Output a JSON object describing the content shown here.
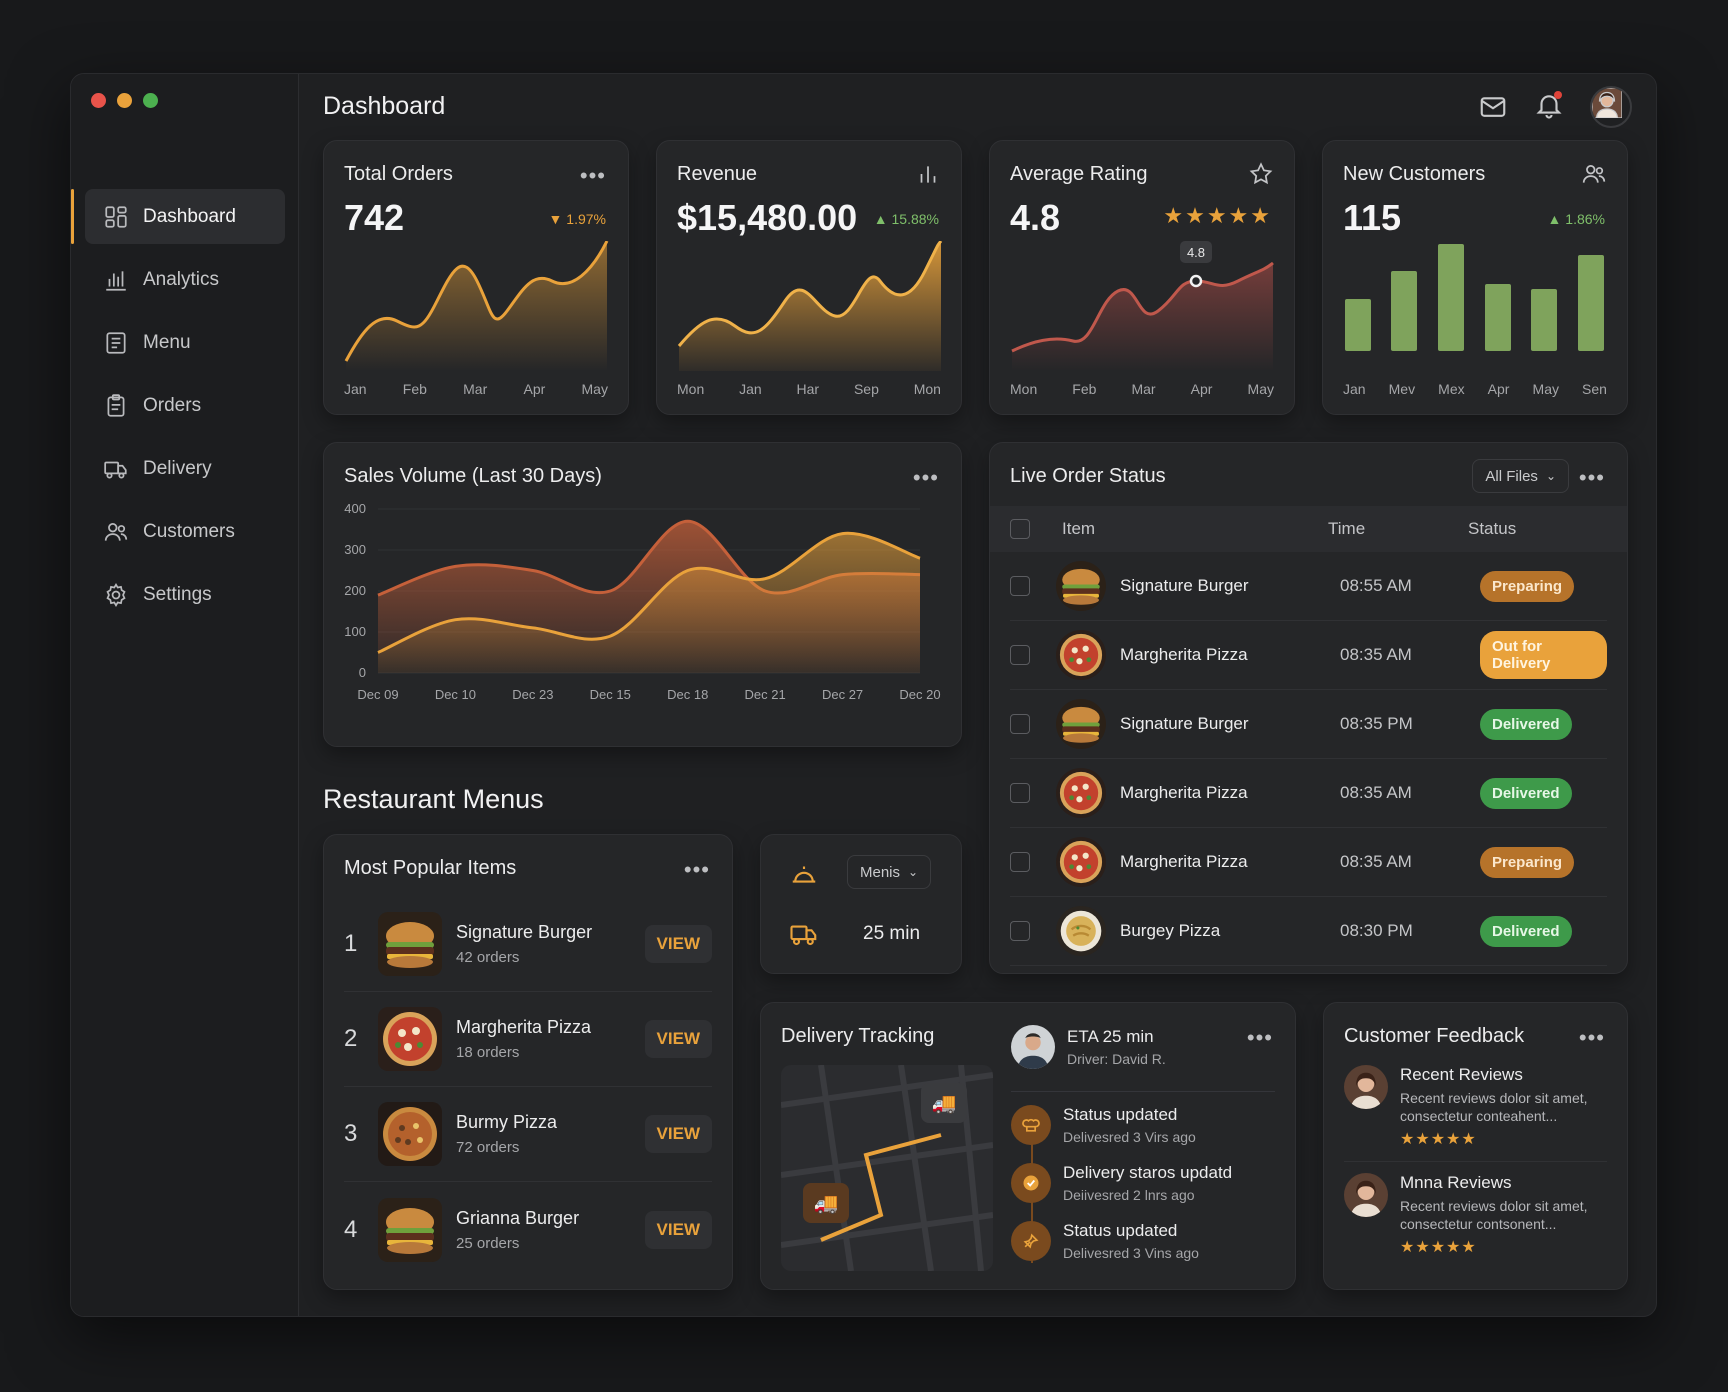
{
  "window": {
    "traffic_colors": [
      "#e8534a",
      "#e9a23b",
      "#4cb04f"
    ]
  },
  "sidebar": {
    "items": [
      {
        "label": "Dashboard",
        "icon": "grid-icon",
        "active": true
      },
      {
        "label": "Analytics",
        "icon": "bar-chart-icon"
      },
      {
        "label": "Menu",
        "icon": "menu-book-icon"
      },
      {
        "label": "Orders",
        "icon": "clipboard-icon"
      },
      {
        "label": "Delivery",
        "icon": "truck-icon"
      },
      {
        "label": "Customers",
        "icon": "users-icon"
      },
      {
        "label": "Settings",
        "icon": "gear-icon"
      }
    ]
  },
  "header": {
    "title": "Dashboard",
    "icons": [
      "mail-icon",
      "bell-icon",
      "avatar"
    ]
  },
  "kpis": {
    "total_orders": {
      "title": "Total Orders",
      "value": "742",
      "delta": "▼ 1.97%",
      "ticks": [
        "Jan",
        "Feb",
        "Mar",
        "Apr",
        "May"
      ]
    },
    "revenue": {
      "title": "Revenue",
      "value": "$15,480.00",
      "delta": "▲ 15.88%",
      "ticks": [
        "Mon",
        "Jan",
        "Har",
        "Sep",
        "Mon"
      ]
    },
    "rating": {
      "title": "Average Rating",
      "value": "4.8",
      "stars": "★★★★★",
      "marker": "4.8",
      "ticks": [
        "Mon",
        "Feb",
        "Mar",
        "Apr",
        "May"
      ]
    },
    "new_customers": {
      "title": "New Customers",
      "value": "115",
      "delta": "▲ 1.86%",
      "ticks": [
        "Jan",
        "Mev",
        "Mex",
        "Apr",
        "May",
        "Sen"
      ]
    }
  },
  "sales": {
    "title": "Sales Volume (Last 30 Days)",
    "chart_data": {
      "type": "area",
      "x": [
        "Dec 09",
        "Dec 10",
        "Dec 23",
        "Dec 15",
        "Dec 18",
        "Dec 21",
        "Dec 27",
        "Dec 20"
      ],
      "yticks": [
        "400",
        "300",
        "200",
        "100",
        "0"
      ],
      "ylim": [
        0,
        400
      ],
      "series": [
        {
          "values": [
            190,
            260,
            250,
            200,
            370,
            200,
            240,
            240
          ],
          "color": "#c5603a"
        },
        {
          "values": [
            50,
            130,
            110,
            90,
            250,
            230,
            340,
            280
          ],
          "color": "#e9a23b"
        }
      ]
    }
  },
  "live_orders": {
    "title": "Live Order Status",
    "filter": "All Files",
    "columns": [
      "Item",
      "Time",
      "Status"
    ],
    "rows": [
      {
        "item": "Signature Burger",
        "time": "08:55 AM",
        "status": "Preparing",
        "kind": "prep",
        "food": "burger"
      },
      {
        "item": "Margherita Pizza",
        "time": "08:35 AM",
        "status": "Out for Delivery",
        "kind": "out",
        "food": "pizza"
      },
      {
        "item": "Signature Burger",
        "time": "08:35 PM",
        "status": "Delivered",
        "kind": "del",
        "food": "burger"
      },
      {
        "item": "Margherita Pizza",
        "time": "08:35 AM",
        "status": "Delivered",
        "kind": "del",
        "food": "pizza"
      },
      {
        "item": "Margherita Pizza",
        "time": "08:35 AM",
        "status": "Preparing",
        "kind": "prep",
        "food": "pizza"
      },
      {
        "item": "Burgey Pizza",
        "time": "08:30 PM",
        "status": "Delivered",
        "kind": "del",
        "food": "pasta"
      }
    ]
  },
  "menus": {
    "section_title": "Restaurant Menus",
    "popular": {
      "title": "Most Popular Items",
      "view_label": "VIEW",
      "items": [
        {
          "rank": "1",
          "name": "Signature Burger",
          "orders": "42 orders",
          "food": "burger"
        },
        {
          "rank": "2",
          "name": "Margherita Pizza",
          "orders": "18 orders",
          "food": "pizza"
        },
        {
          "rank": "3",
          "name": "Burmy Pizza",
          "orders": "72 orders",
          "food": "pizza2"
        },
        {
          "rank": "4",
          "name": "Grianna Burger",
          "orders": "25 orders",
          "food": "burger"
        }
      ]
    },
    "quick": {
      "select": "Menis",
      "time": "25 min",
      "icons": [
        "cloche-icon",
        "truck-icon"
      ]
    }
  },
  "delivery": {
    "title": "Delivery Tracking",
    "eta": "ETA 25 min",
    "driver": "Driver: David R.",
    "timeline": [
      {
        "title": "Status updated",
        "sub": "Delivesred 3 Virs ago",
        "icon": "chef-icon"
      },
      {
        "title": "Delivery staros updatd",
        "sub": "Deiivesred 2 lnrs ago",
        "icon": "check-icon"
      },
      {
        "title": "Status updated",
        "sub": "Delivesred 3 Vins ago",
        "icon": "pin-icon"
      }
    ]
  },
  "feedback": {
    "title": "Customer Feedback",
    "reviews": [
      {
        "title": "Recent Reviews",
        "text": "Recent reviews dolor sit amet, consectetur conteahent...",
        "stars": "★★★★★"
      },
      {
        "title": "Mnna Reviews",
        "text": "Recent reviews dolor sit amet, consectetur contsonent...",
        "stars": "★★★★★"
      }
    ]
  }
}
